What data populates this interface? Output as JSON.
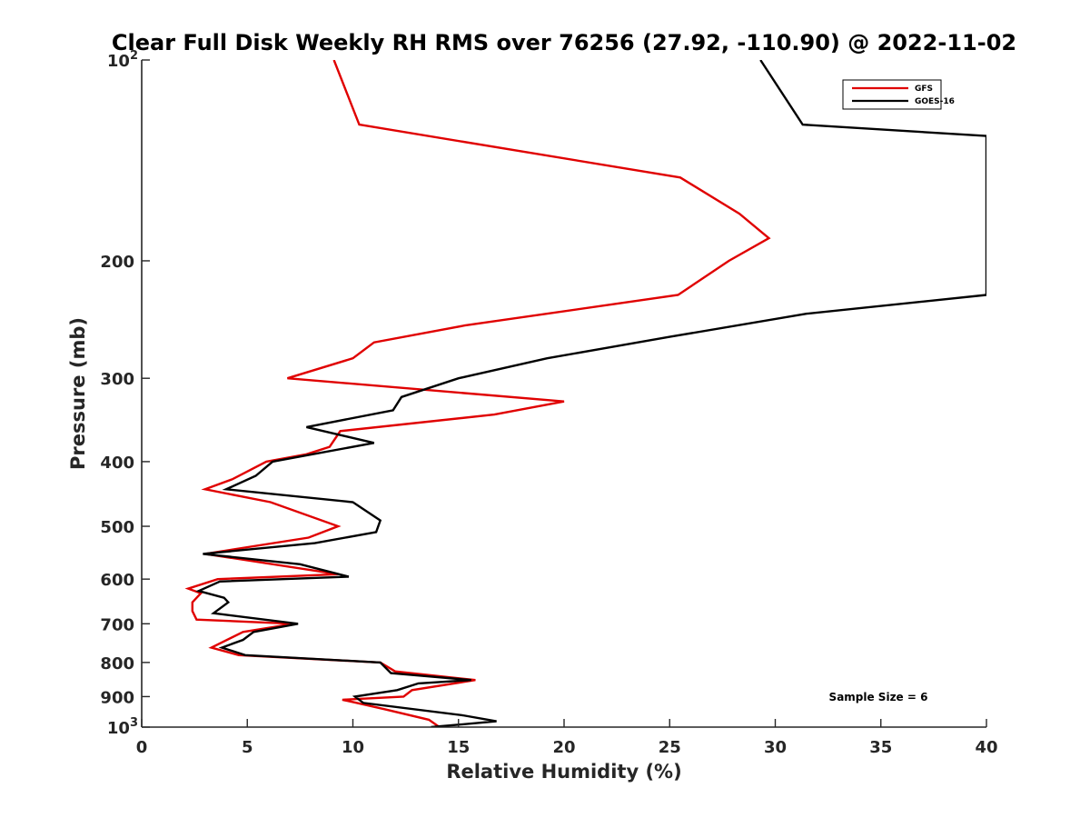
{
  "chart_data": {
    "type": "line",
    "title": "Clear Full Disk Weekly RH RMS over 76256 (27.92, -110.90) @ 2022-11-02",
    "xlabel": "Relative Humidity (%)",
    "ylabel": "Pressure (mb)",
    "xlim": [
      0,
      40
    ],
    "ylim": [
      100,
      1000
    ],
    "yscale": "log",
    "yaxis_reversed": true,
    "xticks": [
      {
        "value": 0,
        "label": "0"
      },
      {
        "value": 5,
        "label": "5"
      },
      {
        "value": 10,
        "label": "10"
      },
      {
        "value": 15,
        "label": "15"
      },
      {
        "value": 20,
        "label": "20"
      },
      {
        "value": 25,
        "label": "25"
      },
      {
        "value": 30,
        "label": "30"
      },
      {
        "value": 35,
        "label": "35"
      },
      {
        "value": 40,
        "label": "40"
      }
    ],
    "yticks": [
      {
        "value": 100,
        "base": "10",
        "exp": "2"
      },
      {
        "value": 200,
        "label": "200"
      },
      {
        "value": 300,
        "label": "300"
      },
      {
        "value": 400,
        "label": "400"
      },
      {
        "value": 500,
        "label": "500"
      },
      {
        "value": 600,
        "label": "600"
      },
      {
        "value": 700,
        "label": "700"
      },
      {
        "value": 800,
        "label": "800"
      },
      {
        "value": 900,
        "label": "900"
      },
      {
        "value": 1000,
        "base": "10",
        "exp": "3"
      }
    ],
    "legend": {
      "position": "top-right",
      "entries": [
        "GFS",
        "GOES-16"
      ]
    },
    "annotation": "Sample Size = 6",
    "series": [
      {
        "name": "GFS",
        "color": "#e00000",
        "points": [
          [
            9.1,
            100
          ],
          [
            10.3,
            125
          ],
          [
            25.5,
            150
          ],
          [
            28.3,
            170
          ],
          [
            29.7,
            185
          ],
          [
            27.8,
            200
          ],
          [
            25.4,
            225
          ],
          [
            15.3,
            250
          ],
          [
            11.0,
            265
          ],
          [
            10.0,
            280
          ],
          [
            6.9,
            300
          ],
          [
            20.0,
            325
          ],
          [
            16.7,
            340
          ],
          [
            9.4,
            360
          ],
          [
            8.9,
            380
          ],
          [
            7.8,
            390
          ],
          [
            5.9,
            400
          ],
          [
            4.3,
            425
          ],
          [
            3.0,
            440
          ],
          [
            6.1,
            460
          ],
          [
            9.3,
            500
          ],
          [
            7.9,
            520
          ],
          [
            3.0,
            550
          ],
          [
            9.3,
            590
          ],
          [
            3.6,
            600
          ],
          [
            2.2,
            620
          ],
          [
            2.8,
            630
          ],
          [
            2.4,
            650
          ],
          [
            2.4,
            670
          ],
          [
            2.6,
            690
          ],
          [
            7.2,
            700
          ],
          [
            4.8,
            720
          ],
          [
            3.3,
            760
          ],
          [
            4.6,
            780
          ],
          [
            11.3,
            800
          ],
          [
            12.0,
            825
          ],
          [
            15.8,
            850
          ],
          [
            12.8,
            880
          ],
          [
            12.4,
            900
          ],
          [
            9.5,
            910
          ],
          [
            10.2,
            920
          ],
          [
            11.5,
            940
          ],
          [
            13.6,
            975
          ],
          [
            14.1,
            1000
          ]
        ]
      },
      {
        "name": "GOES-16",
        "color": "#000000",
        "points": [
          [
            29.3,
            100
          ],
          [
            31.3,
            125
          ],
          [
            40.0,
            130
          ],
          [
            40.0,
            225
          ],
          [
            31.5,
            240
          ],
          [
            25.0,
            260
          ],
          [
            19.2,
            280
          ],
          [
            15.0,
            300
          ],
          [
            12.3,
            320
          ],
          [
            11.9,
            335
          ],
          [
            7.8,
            355
          ],
          [
            11.0,
            375
          ],
          [
            6.2,
            400
          ],
          [
            5.4,
            420
          ],
          [
            4.0,
            440
          ],
          [
            10.0,
            460
          ],
          [
            11.3,
            490
          ],
          [
            11.1,
            510
          ],
          [
            8.2,
            530
          ],
          [
            2.9,
            550
          ],
          [
            7.5,
            570
          ],
          [
            9.8,
            595
          ],
          [
            3.7,
            605
          ],
          [
            2.7,
            625
          ],
          [
            3.9,
            640
          ],
          [
            4.1,
            650
          ],
          [
            3.4,
            675
          ],
          [
            7.4,
            700
          ],
          [
            5.3,
            720
          ],
          [
            4.8,
            740
          ],
          [
            3.8,
            760
          ],
          [
            4.9,
            780
          ],
          [
            11.3,
            800
          ],
          [
            11.8,
            830
          ],
          [
            15.6,
            850
          ],
          [
            13.1,
            860
          ],
          [
            12.1,
            880
          ],
          [
            10.1,
            900
          ],
          [
            10.5,
            920
          ],
          [
            15.2,
            960
          ],
          [
            16.8,
            980
          ],
          [
            13.7,
            1000
          ]
        ]
      }
    ]
  }
}
